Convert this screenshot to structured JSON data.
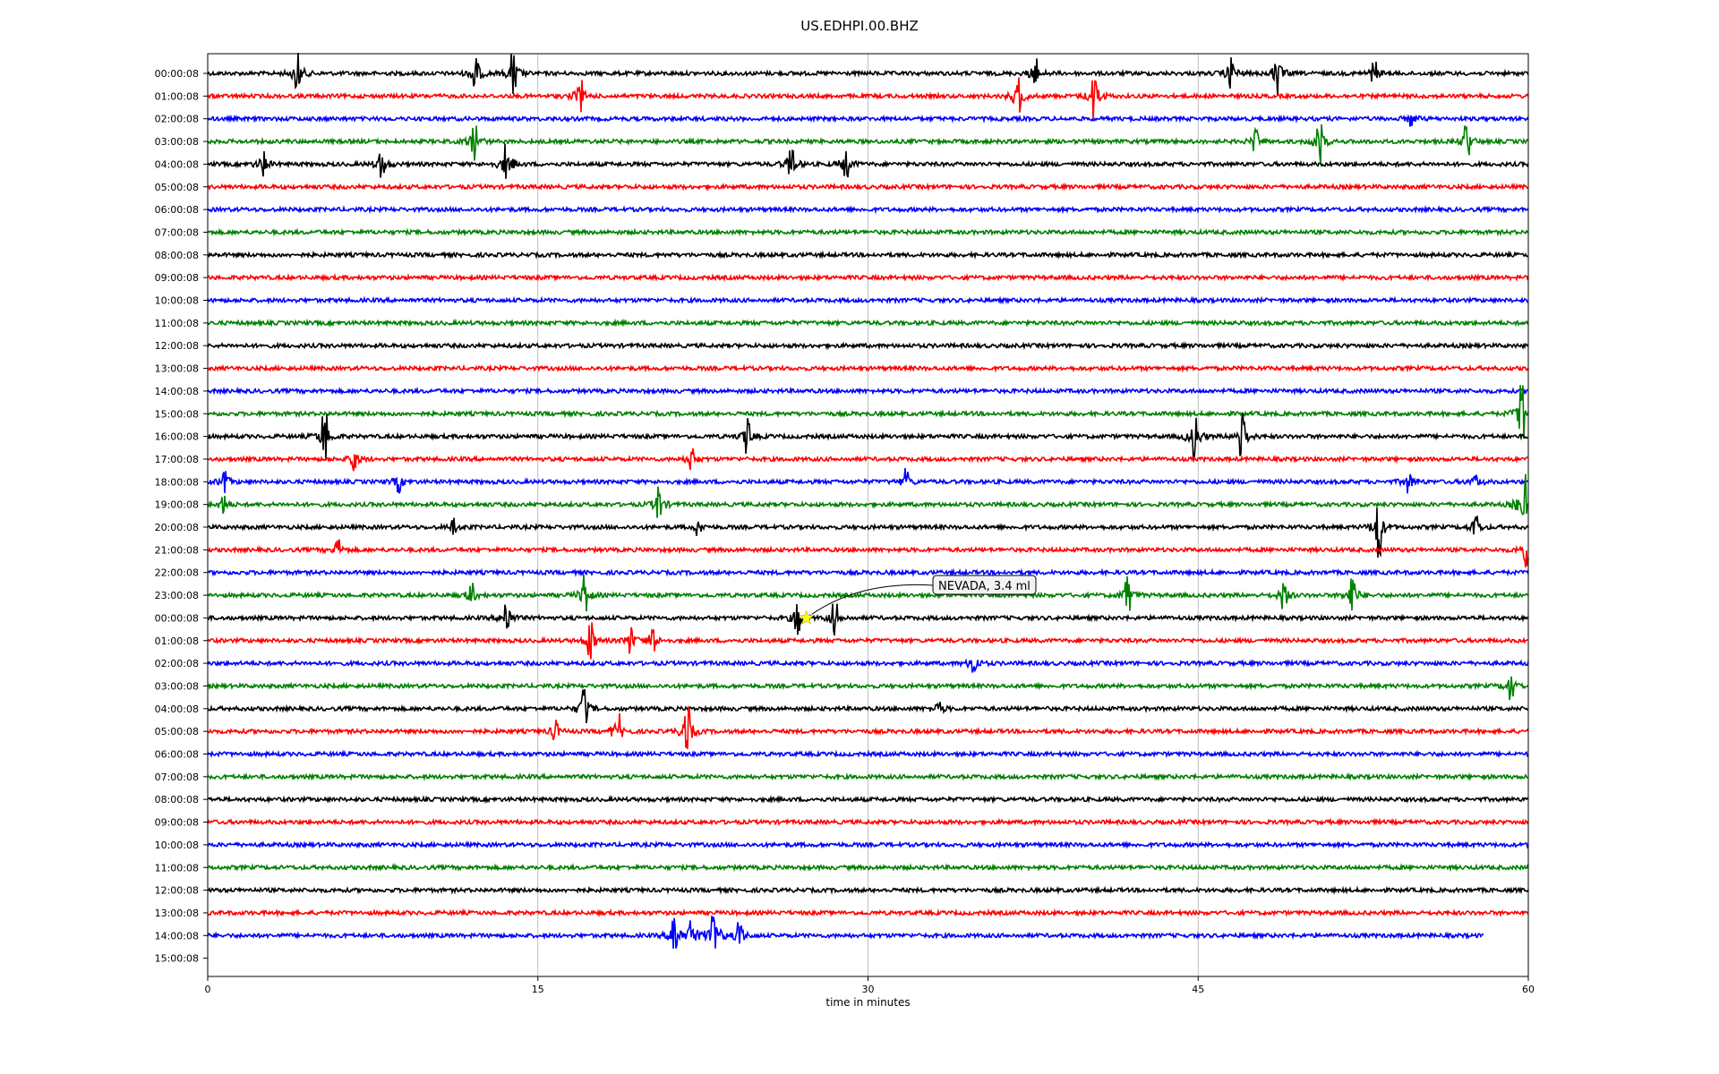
{
  "chart_data": {
    "type": "line",
    "title": "US.EDHPI.00.BHZ",
    "xlabel": "time in minutes",
    "ylabel": "",
    "xlim": [
      0,
      60
    ],
    "x_ticks": [
      "0",
      "15",
      "30",
      "45",
      "60"
    ],
    "grid": "vertical",
    "line_colors": [
      "#000000",
      "#ff0000",
      "#0000ff",
      "#008000"
    ],
    "row_labels": [
      "00:00:08",
      "01:00:08",
      "02:00:08",
      "03:00:08",
      "04:00:08",
      "05:00:08",
      "06:00:08",
      "07:00:08",
      "08:00:08",
      "09:00:08",
      "10:00:08",
      "11:00:08",
      "12:00:08",
      "13:00:08",
      "14:00:08",
      "15:00:08",
      "16:00:08",
      "17:00:08",
      "18:00:08",
      "19:00:08",
      "20:00:08",
      "21:00:08",
      "22:00:08",
      "23:00:08",
      "00:00:08",
      "01:00:08",
      "02:00:08",
      "03:00:08",
      "04:00:08",
      "05:00:08",
      "06:00:08",
      "07:00:08",
      "08:00:08",
      "09:00:08",
      "10:00:08",
      "11:00:08",
      "12:00:08",
      "13:00:08",
      "14:00:08",
      "15:00:08"
    ],
    "row_end_minutes": [
      60,
      60,
      60,
      60,
      60,
      60,
      60,
      60,
      60,
      60,
      60,
      60,
      60,
      60,
      60,
      60,
      60,
      60,
      60,
      60,
      60,
      60,
      60,
      60,
      60,
      60,
      60,
      60,
      60,
      60,
      60,
      60,
      60,
      60,
      60,
      60,
      60,
      60,
      58,
      0
    ],
    "events": [
      {
        "row": 0,
        "t": 4.1,
        "a": 1.0
      },
      {
        "row": 0,
        "t": 12.2,
        "a": 0.9
      },
      {
        "row": 0,
        "t": 13.9,
        "a": 1.1
      },
      {
        "row": 0,
        "t": 37.6,
        "a": 0.8
      },
      {
        "row": 0,
        "t": 46.5,
        "a": 1.0
      },
      {
        "row": 0,
        "t": 48.6,
        "a": 1.1
      },
      {
        "row": 0,
        "t": 53.0,
        "a": 0.6
      },
      {
        "row": 1,
        "t": 16.9,
        "a": 0.9
      },
      {
        "row": 1,
        "t": 36.8,
        "a": 1.2
      },
      {
        "row": 1,
        "t": 40.3,
        "a": 1.3
      },
      {
        "row": 2,
        "t": 54.7,
        "a": 0.4
      },
      {
        "row": 3,
        "t": 12.1,
        "a": 0.9
      },
      {
        "row": 3,
        "t": 47.6,
        "a": 0.5
      },
      {
        "row": 3,
        "t": 50.5,
        "a": 1.1
      },
      {
        "row": 3,
        "t": 57.2,
        "a": 0.8
      },
      {
        "row": 4,
        "t": 2.5,
        "a": 0.7
      },
      {
        "row": 4,
        "t": 7.9,
        "a": 0.8
      },
      {
        "row": 4,
        "t": 13.6,
        "a": 1.4
      },
      {
        "row": 4,
        "t": 26.5,
        "a": 1.0
      },
      {
        "row": 4,
        "t": 29.0,
        "a": 0.9
      },
      {
        "row": 15,
        "t": 59.7,
        "a": 1.6
      },
      {
        "row": 16,
        "t": 5.3,
        "a": 1.3
      },
      {
        "row": 16,
        "t": 24.5,
        "a": 0.9
      },
      {
        "row": 16,
        "t": 44.8,
        "a": 1.5
      },
      {
        "row": 16,
        "t": 47.0,
        "a": 1.1
      },
      {
        "row": 17,
        "t": 6.7,
        "a": 0.6
      },
      {
        "row": 17,
        "t": 22.0,
        "a": 0.5
      },
      {
        "row": 18,
        "t": 0.8,
        "a": 0.5
      },
      {
        "row": 18,
        "t": 8.7,
        "a": 0.5
      },
      {
        "row": 18,
        "t": 31.7,
        "a": 0.6
      },
      {
        "row": 18,
        "t": 54.6,
        "a": 0.7
      },
      {
        "row": 18,
        "t": 57.6,
        "a": 0.5
      },
      {
        "row": 19,
        "t": 0.7,
        "a": 0.5
      },
      {
        "row": 19,
        "t": 20.5,
        "a": 0.9
      },
      {
        "row": 19,
        "t": 59.8,
        "a": 2.0
      },
      {
        "row": 20,
        "t": 11.2,
        "a": 0.4
      },
      {
        "row": 20,
        "t": 22.3,
        "a": 0.4
      },
      {
        "row": 20,
        "t": 53.2,
        "a": 1.5
      },
      {
        "row": 20,
        "t": 57.6,
        "a": 0.6
      },
      {
        "row": 21,
        "t": 5.9,
        "a": 0.6
      },
      {
        "row": 21,
        "t": 59.9,
        "a": 0.8
      },
      {
        "row": 23,
        "t": 12.0,
        "a": 0.6
      },
      {
        "row": 23,
        "t": 17.1,
        "a": 1.0
      },
      {
        "row": 23,
        "t": 41.8,
        "a": 0.9
      },
      {
        "row": 23,
        "t": 48.9,
        "a": 0.7
      },
      {
        "row": 23,
        "t": 52.0,
        "a": 1.0
      },
      {
        "row": 24,
        "t": 13.6,
        "a": 0.9
      },
      {
        "row": 24,
        "t": 26.8,
        "a": 0.8
      },
      {
        "row": 24,
        "t": 28.5,
        "a": 0.8
      },
      {
        "row": 25,
        "t": 17.4,
        "a": 0.9
      },
      {
        "row": 25,
        "t": 19.2,
        "a": 0.7
      },
      {
        "row": 25,
        "t": 20.2,
        "a": 0.7
      },
      {
        "row": 26,
        "t": 34.8,
        "a": 0.6
      },
      {
        "row": 27,
        "t": 59.2,
        "a": 0.7
      },
      {
        "row": 28,
        "t": 17.1,
        "a": 1.1
      },
      {
        "row": 28,
        "t": 33.2,
        "a": 0.5
      },
      {
        "row": 29,
        "t": 15.8,
        "a": 0.5
      },
      {
        "row": 29,
        "t": 18.6,
        "a": 1.1
      },
      {
        "row": 29,
        "t": 21.8,
        "a": 1.3
      },
      {
        "row": 38,
        "t": 21.2,
        "a": 1.1
      },
      {
        "row": 38,
        "t": 22.0,
        "a": 1.0
      },
      {
        "row": 38,
        "t": 23.0,
        "a": 1.7
      },
      {
        "row": 38,
        "t": 24.2,
        "a": 0.7
      }
    ],
    "annotation": {
      "text": "NEVADA, 3.4 ml",
      "row": 24,
      "t": 27.2,
      "marker_color": "#ffff00"
    }
  }
}
